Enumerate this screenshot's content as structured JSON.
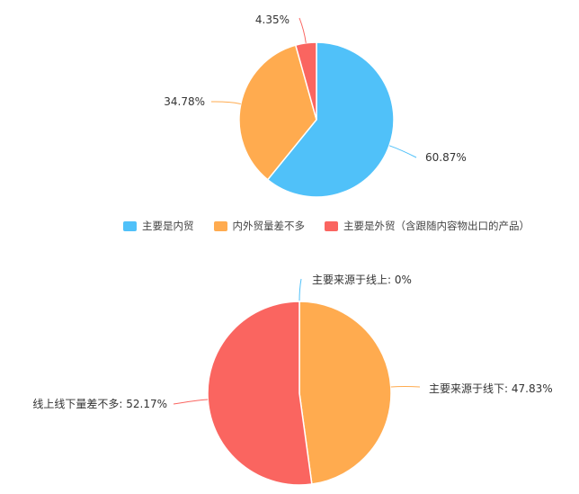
{
  "chart_data": [
    {
      "type": "pie",
      "categories": [
        "主要是内贸",
        "内外贸量差不多",
        "主要是外贸（含跟随内容物出口的产品）"
      ],
      "values": [
        60.87,
        34.78,
        4.35
      ],
      "data_labels": [
        "60.87%",
        "34.78%",
        "4.35%"
      ],
      "colors": [
        "#50c1f9",
        "#ffab4f",
        "#fa6560"
      ],
      "legend": "bottom",
      "start_angle": "top, clockwise"
    },
    {
      "type": "pie",
      "categories": [
        "主要来源于线上",
        "主要来源于线下",
        "线上线下量差不多"
      ],
      "values": [
        0,
        47.83,
        52.17
      ],
      "data_labels": [
        "主要来源于线上: 0%",
        "主要来源于线下: 47.83%",
        "线上线下量差不多: 52.17%"
      ],
      "colors": [
        "#50c1f9",
        "#ffab4f",
        "#fa6560"
      ],
      "legend": "none",
      "start_angle": "top, clockwise"
    }
  ]
}
